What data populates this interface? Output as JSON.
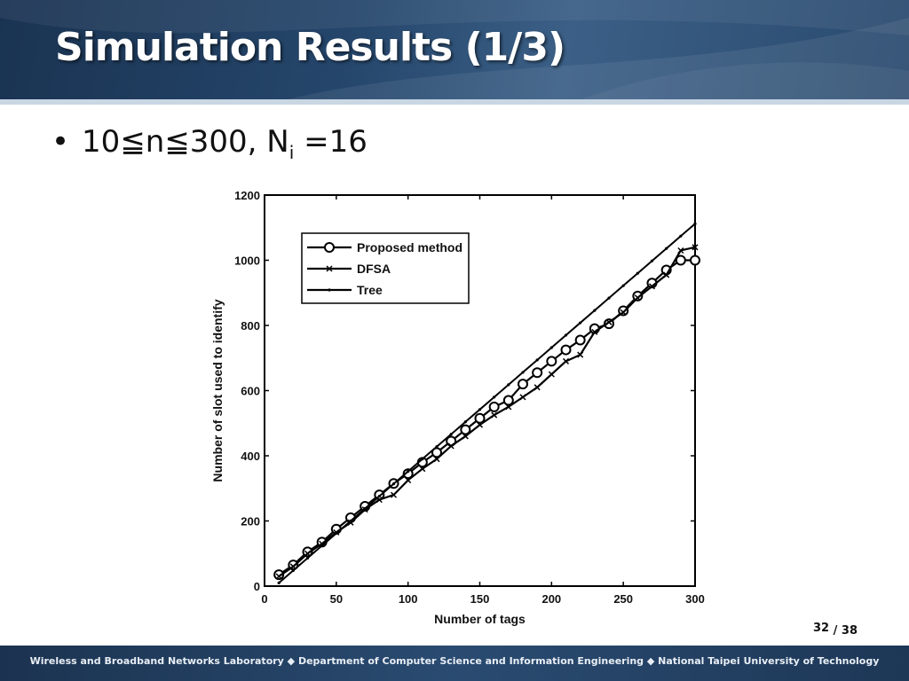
{
  "slide": {
    "title": "Simulation Results (1/3)",
    "bullet": {
      "prefix": "10≦n≦300, N",
      "subscript": "i",
      "suffix": " =16"
    },
    "page_current": "32",
    "page_total": "/ 38",
    "footer": "Wireless and Broadband Networks Laboratory ◆ Department of Computer Science and Information Engineering ◆ National Taipei University of Technology"
  },
  "colors": {
    "header_bg": "#25466b",
    "footer_bg": "#1f3a5a",
    "series_stroke": "#000000"
  },
  "chart_data": {
    "type": "line",
    "title": "",
    "xlabel": "Number of tags",
    "ylabel": "Number of slot used to identify",
    "xlim": [
      0,
      300
    ],
    "ylim": [
      0,
      1200
    ],
    "xticks": [
      0,
      50,
      100,
      150,
      200,
      250,
      300
    ],
    "yticks": [
      0,
      200,
      400,
      600,
      800,
      1000,
      1200
    ],
    "grid": false,
    "legend_position": "top-left",
    "x": [
      10,
      20,
      30,
      40,
      50,
      60,
      70,
      80,
      90,
      100,
      110,
      120,
      130,
      140,
      150,
      160,
      170,
      180,
      190,
      200,
      210,
      220,
      230,
      240,
      250,
      260,
      270,
      280,
      290,
      300
    ],
    "series": [
      {
        "name": "Proposed method",
        "marker": "circle",
        "values": [
          35,
          65,
          105,
          135,
          175,
          210,
          245,
          280,
          315,
          345,
          380,
          410,
          445,
          480,
          515,
          550,
          570,
          620,
          655,
          690,
          725,
          755,
          790,
          805,
          845,
          890,
          930,
          970,
          1000,
          1000
        ]
      },
      {
        "name": "DFSA",
        "marker": "x",
        "values": [
          30,
          60,
          100,
          130,
          165,
          195,
          235,
          265,
          280,
          325,
          360,
          390,
          430,
          460,
          495,
          525,
          550,
          580,
          610,
          650,
          690,
          710,
          780,
          810,
          840,
          885,
          920,
          955,
          1030,
          1040
        ]
      },
      {
        "name": "Tree",
        "marker": "dot",
        "values": [
          10,
          48,
          86,
          124,
          162,
          200,
          238,
          276,
          314,
          352,
          390,
          428,
          466,
          504,
          542,
          580,
          618,
          656,
          694,
          732,
          770,
          808,
          846,
          884,
          922,
          960,
          998,
          1036,
          1074,
          1112
        ]
      }
    ]
  }
}
